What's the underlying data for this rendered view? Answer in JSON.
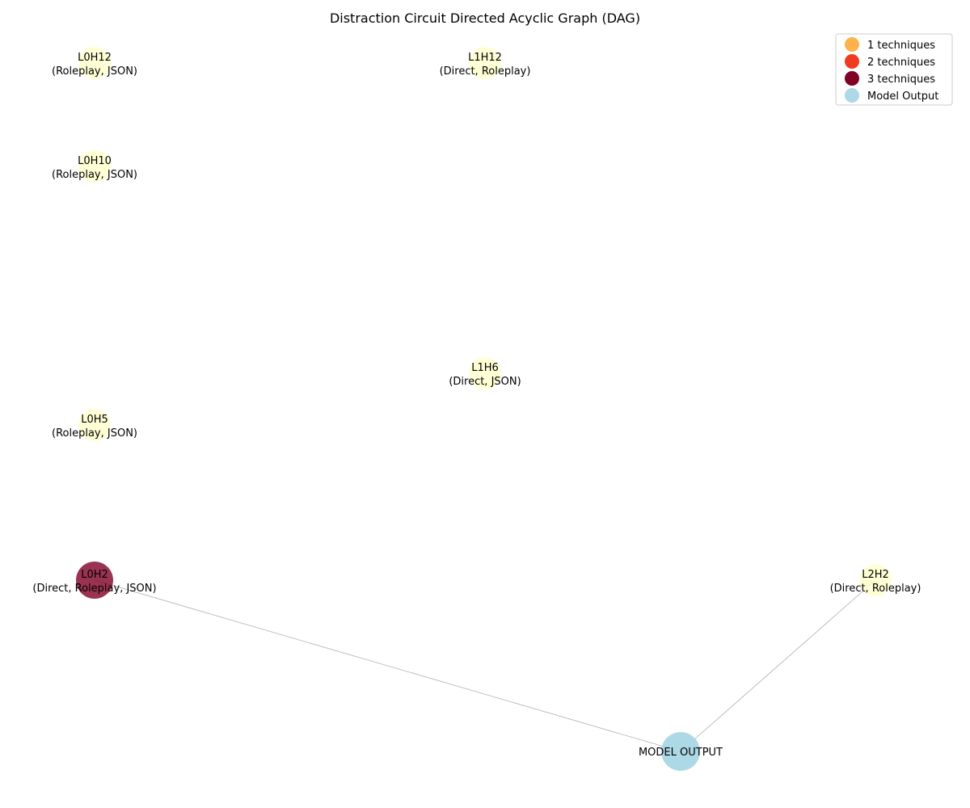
{
  "title": "Distraction Circuit Directed Acyclic Graph (DAG)",
  "colors": {
    "one_technique": "#ffffcc",
    "one_technique_legend": "#feb24c",
    "two_techniques": "#f03b20",
    "three_techniques": "#800026",
    "model_output": "#add8e6",
    "edge": "#b0b0b0"
  },
  "legend": [
    {
      "label": "1 techniques",
      "color": "#feb24c"
    },
    {
      "label": "2 techniques",
      "color": "#f03b20"
    },
    {
      "label": "3 techniques",
      "color": "#800026"
    },
    {
      "label": "Model Output",
      "color": "#add8e6"
    }
  ],
  "nodes": [
    {
      "id": "L0H12",
      "label": "L0H12",
      "techniques": "(Roleplay, JSON)",
      "kind": "head",
      "technique_count": 2
    },
    {
      "id": "L1H12",
      "label": "L1H12",
      "techniques": "(Direct, Roleplay)",
      "kind": "head",
      "technique_count": 2
    },
    {
      "id": "L0H10",
      "label": "L0H10",
      "techniques": "(Roleplay, JSON)",
      "kind": "head",
      "technique_count": 2
    },
    {
      "id": "L1H6",
      "label": "L1H6",
      "techniques": "(Direct, JSON)",
      "kind": "head",
      "technique_count": 2
    },
    {
      "id": "L0H5",
      "label": "L0H5",
      "techniques": "(Roleplay, JSON)",
      "kind": "head",
      "technique_count": 2
    },
    {
      "id": "L0H2",
      "label": "L0H2",
      "techniques": "(Direct, Roleplay, JSON)",
      "kind": "head",
      "technique_count": 3
    },
    {
      "id": "L2H2",
      "label": "L2H2",
      "techniques": "(Direct, Roleplay)",
      "kind": "head",
      "technique_count": 2
    },
    {
      "id": "OUTPUT",
      "label": "MODEL OUTPUT",
      "techniques": "",
      "kind": "output"
    }
  ],
  "edges": [
    {
      "from": "L0H2",
      "to": "OUTPUT"
    },
    {
      "from": "L2H2",
      "to": "OUTPUT"
    }
  ]
}
